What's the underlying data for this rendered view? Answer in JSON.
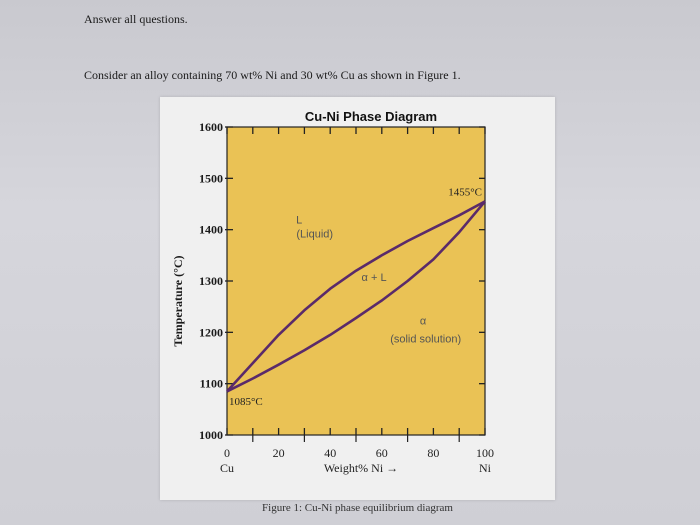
{
  "text": {
    "instruction": "Answer all questions.",
    "question": "Consider an alloy containing 70 wt% Ni and 30 wt% Cu as shown in Figure 1.",
    "caption": "Figure 1: Cu-Ni phase equilibrium diagram"
  },
  "chart_data": {
    "type": "line",
    "title": "Cu-Ni Phase Diagram",
    "ylabel": "Temperature (°C)",
    "xlabel": "Weight% Ni →",
    "x_ticks": [
      "0",
      "20",
      "40",
      "60",
      "80",
      "100"
    ],
    "y_ticks": [
      "1000",
      "1100",
      "1200",
      "1300",
      "1400",
      "1500",
      "1600"
    ],
    "x_end_labels": {
      "left": "Cu",
      "right": "Ni"
    },
    "xlim": [
      0,
      100
    ],
    "ylim": [
      1000,
      1600
    ],
    "series": [
      {
        "x": [
          0,
          10,
          20,
          30,
          40,
          50,
          60,
          70,
          80,
          90,
          100
        ],
        "y": [
          1085,
          1140,
          1195,
          1243,
          1285,
          1320,
          1350,
          1378,
          1403,
          1428,
          1455
        ]
      },
      {
        "x": [
          0,
          10,
          20,
          30,
          40,
          50,
          60,
          70,
          80,
          90,
          100
        ],
        "y": [
          1085,
          1110,
          1137,
          1165,
          1195,
          1228,
          1262,
          1300,
          1342,
          1395,
          1455
        ]
      }
    ],
    "annotations": {
      "liquid_symbol": "L",
      "liquid_name": "(Liquid)",
      "two_phase": "α + L",
      "solid_symbol": "α",
      "solid_name": "(solid solution)",
      "cu_melt": "1085°C",
      "ni_melt": "1455°C"
    },
    "colors": {
      "plot_bg": "#eac255",
      "curve": "#5a2a6a",
      "axis": "#222222"
    }
  }
}
